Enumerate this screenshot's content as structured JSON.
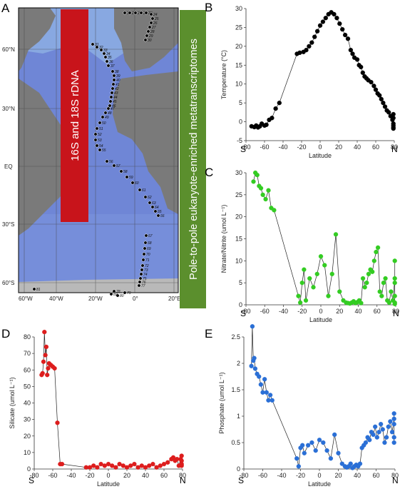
{
  "panel_letters": [
    "A",
    "B",
    "C",
    "D",
    "E"
  ],
  "map": {
    "lat_labels": [
      "60°N",
      "30°N",
      "EQ",
      "30°S",
      "60°S"
    ],
    "lon_labels": [
      "60°W",
      "40°W",
      "20°W",
      "0°",
      "20°E"
    ],
    "red_bar_text": "16S and 18S rDNA",
    "green_bar_text": "Pole-to-pole eukaryote-enriched metatranscriptomes",
    "colors": {
      "red_bar": "#c8141b",
      "green_bar": "#5b8f2d",
      "ocean": "#6f86d6",
      "land": "#7a7a7a"
    },
    "stations": [
      "19",
      "20",
      "21",
      "22",
      "23",
      "24",
      "25",
      "26",
      "27",
      "28",
      "29",
      "30",
      "31",
      "32",
      "33",
      "34",
      "35",
      "36",
      "37",
      "38",
      "39",
      "40",
      "41",
      "42",
      "43",
      "44",
      "45",
      "46",
      "47",
      "48",
      "49",
      "50",
      "51",
      "52",
      "53",
      "54",
      "55",
      "56",
      "57",
      "58",
      "59",
      "60",
      "61",
      "62",
      "63",
      "64",
      "65",
      "66",
      "67",
      "68",
      "69",
      "70",
      "71",
      "72",
      "73",
      "74",
      "75",
      "76",
      "77",
      "78",
      "79",
      "80",
      "81",
      "82"
    ]
  },
  "chart_data": [
    {
      "panel": "B",
      "type": "line",
      "xlabel": "Latitude",
      "ylabel": "Temperature (°C)",
      "xlim": [
        -80,
        80
      ],
      "ylim": [
        -5,
        30
      ],
      "xticks": [
        -80,
        -60,
        -40,
        -20,
        0,
        20,
        40,
        60,
        80
      ],
      "yticks": [
        -5,
        0,
        5,
        10,
        15,
        20,
        25,
        30
      ],
      "end_labels": [
        "S",
        "N"
      ],
      "color": "#000000",
      "x": [
        -74,
        -71,
        -69,
        -67,
        -65,
        -63,
        -60,
        -58,
        -55,
        -52,
        -48,
        -44,
        -25,
        -22,
        -18,
        -15,
        -12,
        -9,
        -6,
        -3,
        0,
        3,
        6,
        9,
        12,
        15,
        18,
        21,
        24,
        27,
        30,
        33,
        35,
        37,
        40,
        42,
        44,
        46,
        48,
        50,
        52,
        55,
        58,
        60,
        62,
        64,
        66,
        68,
        70,
        72,
        74,
        76,
        78,
        79,
        79,
        79,
        79,
        79,
        79
      ],
      "y": [
        -1.2,
        -1.4,
        -1,
        -1.5,
        -1.2,
        -0.5,
        -1,
        -0.8,
        0.5,
        1,
        3.5,
        5,
        18,
        18.3,
        18.5,
        19,
        20,
        21,
        22.5,
        24,
        25.5,
        26.5,
        27.5,
        28.5,
        29,
        28.5,
        27.5,
        26,
        24.5,
        23,
        22,
        19,
        18,
        17,
        16.5,
        15,
        14.5,
        13,
        12,
        11.5,
        11,
        10.5,
        9.5,
        8.5,
        7.5,
        7,
        6,
        5,
        4,
        3,
        2.5,
        1.5,
        0.5,
        -0.5,
        -1,
        -1.5,
        -1.8,
        1,
        2
      ]
    },
    {
      "panel": "C",
      "type": "line",
      "xlabel": "Latitude",
      "ylabel": "Nitrate/Nitrite (umol L⁻¹)",
      "xlim": [
        -80,
        80
      ],
      "ylim": [
        0,
        30
      ],
      "xticks": [
        -80,
        -60,
        -40,
        -20,
        0,
        20,
        40,
        60,
        80
      ],
      "yticks": [
        0,
        5,
        10,
        15,
        20,
        25,
        30
      ],
      "end_labels": [
        "S",
        "N"
      ],
      "color": "#33cc22",
      "x": [
        -72,
        -70,
        -68,
        -66,
        -64,
        -62,
        -59,
        -56,
        -53,
        -50,
        -24,
        -22,
        -20,
        -18,
        -16,
        -12,
        -8,
        -4,
        0,
        4,
        8,
        12,
        16,
        20,
        24,
        27,
        29,
        31,
        33,
        35,
        37,
        39,
        41,
        43,
        45,
        47,
        49,
        51,
        53,
        55,
        57,
        59,
        61,
        63,
        65,
        67,
        69,
        71,
        73,
        75,
        77,
        79,
        79,
        79,
        79,
        79,
        79
      ],
      "y": [
        28,
        30,
        29.5,
        27,
        26.5,
        25,
        24,
        26,
        22,
        21.5,
        2,
        0.5,
        5,
        8,
        1,
        6,
        4,
        7,
        11,
        9,
        2,
        7,
        16,
        3,
        1,
        0.5,
        0.4,
        0.3,
        0.5,
        0.8,
        0.4,
        0.6,
        1,
        0.4,
        6,
        4,
        5,
        7,
        8,
        7.5,
        10,
        12,
        13,
        3,
        2,
        5,
        6,
        1,
        0.5,
        3,
        1,
        6,
        10,
        5,
        2,
        0.5,
        0.2
      ]
    },
    {
      "panel": "D",
      "type": "line",
      "xlabel": "Latitude",
      "ylabel": "Silicate (umol L⁻¹)",
      "xlim": [
        -80,
        80
      ],
      "ylim": [
        0,
        80
      ],
      "xticks": [
        -80,
        -60,
        -40,
        -20,
        0,
        20,
        40,
        60,
        80
      ],
      "yticks": [
        0,
        10,
        20,
        30,
        40,
        50,
        60,
        70,
        80
      ],
      "end_labels": [
        "S",
        "N"
      ],
      "color": "#dd1d1d",
      "x": [
        -72,
        -71,
        -70,
        -69,
        -68,
        -67,
        -66,
        -65,
        -64,
        -62,
        -60,
        -58,
        -55,
        -52,
        -50,
        -24,
        -20,
        -16,
        -12,
        -8,
        -4,
        0,
        4,
        8,
        12,
        16,
        20,
        24,
        28,
        32,
        36,
        40,
        44,
        48,
        52,
        56,
        60,
        64,
        68,
        70,
        72,
        74,
        76,
        78,
        79,
        79,
        79,
        79
      ],
      "y": [
        57,
        58,
        65,
        83,
        69,
        74,
        57,
        61,
        64,
        63,
        62,
        61,
        28,
        3,
        3,
        1,
        1,
        2,
        1,
        3,
        2,
        3,
        2,
        1,
        3,
        2,
        1,
        2,
        3,
        1,
        2,
        1,
        2,
        3,
        1,
        2,
        3,
        4,
        6,
        7,
        5,
        6,
        2,
        6,
        8,
        5,
        3,
        2
      ]
    },
    {
      "panel": "E",
      "type": "line",
      "xlabel": "Latitude",
      "ylabel": "Phosphate (umol L⁻¹)",
      "xlim": [
        -80,
        80
      ],
      "ylim": [
        0,
        2.5
      ],
      "xticks": [
        -80,
        -60,
        -40,
        -20,
        0,
        20,
        40,
        60,
        80
      ],
      "yticks": [
        0,
        0.5,
        1,
        1.5,
        2,
        2.5
      ],
      "end_labels": [
        "S",
        "N"
      ],
      "color": "#2a6fd6",
      "x": [
        -72,
        -71,
        -70,
        -69,
        -68,
        -66,
        -64,
        -62,
        -60,
        -58,
        -56,
        -54,
        -52,
        -50,
        -24,
        -22,
        -20,
        -18,
        -16,
        -12,
        -8,
        -4,
        0,
        4,
        8,
        12,
        16,
        20,
        24,
        27,
        29,
        31,
        33,
        35,
        37,
        39,
        41,
        43,
        45,
        47,
        49,
        51,
        53,
        55,
        57,
        59,
        61,
        63,
        65,
        67,
        69,
        71,
        73,
        75,
        77,
        79,
        79,
        79,
        79,
        79
      ],
      "y": [
        1.95,
        2.7,
        2.05,
        2.1,
        1.9,
        1.8,
        1.75,
        1.6,
        1.45,
        1.7,
        1.45,
        1.3,
        1.4,
        1.3,
        0.2,
        0.05,
        0.4,
        0.45,
        0.3,
        0.45,
        0.5,
        0.35,
        0.55,
        0.5,
        0.35,
        0.2,
        0.65,
        0.3,
        0.1,
        0.05,
        0.03,
        0.05,
        0.1,
        0.02,
        0.05,
        0.08,
        0.05,
        0.1,
        0.4,
        0.45,
        0.5,
        0.6,
        0.55,
        0.7,
        0.65,
        0.8,
        0.6,
        0.7,
        0.85,
        0.75,
        0.5,
        0.6,
        0.8,
        0.9,
        0.7,
        0.95,
        1.05,
        0.85,
        0.6,
        0.5
      ]
    }
  ]
}
